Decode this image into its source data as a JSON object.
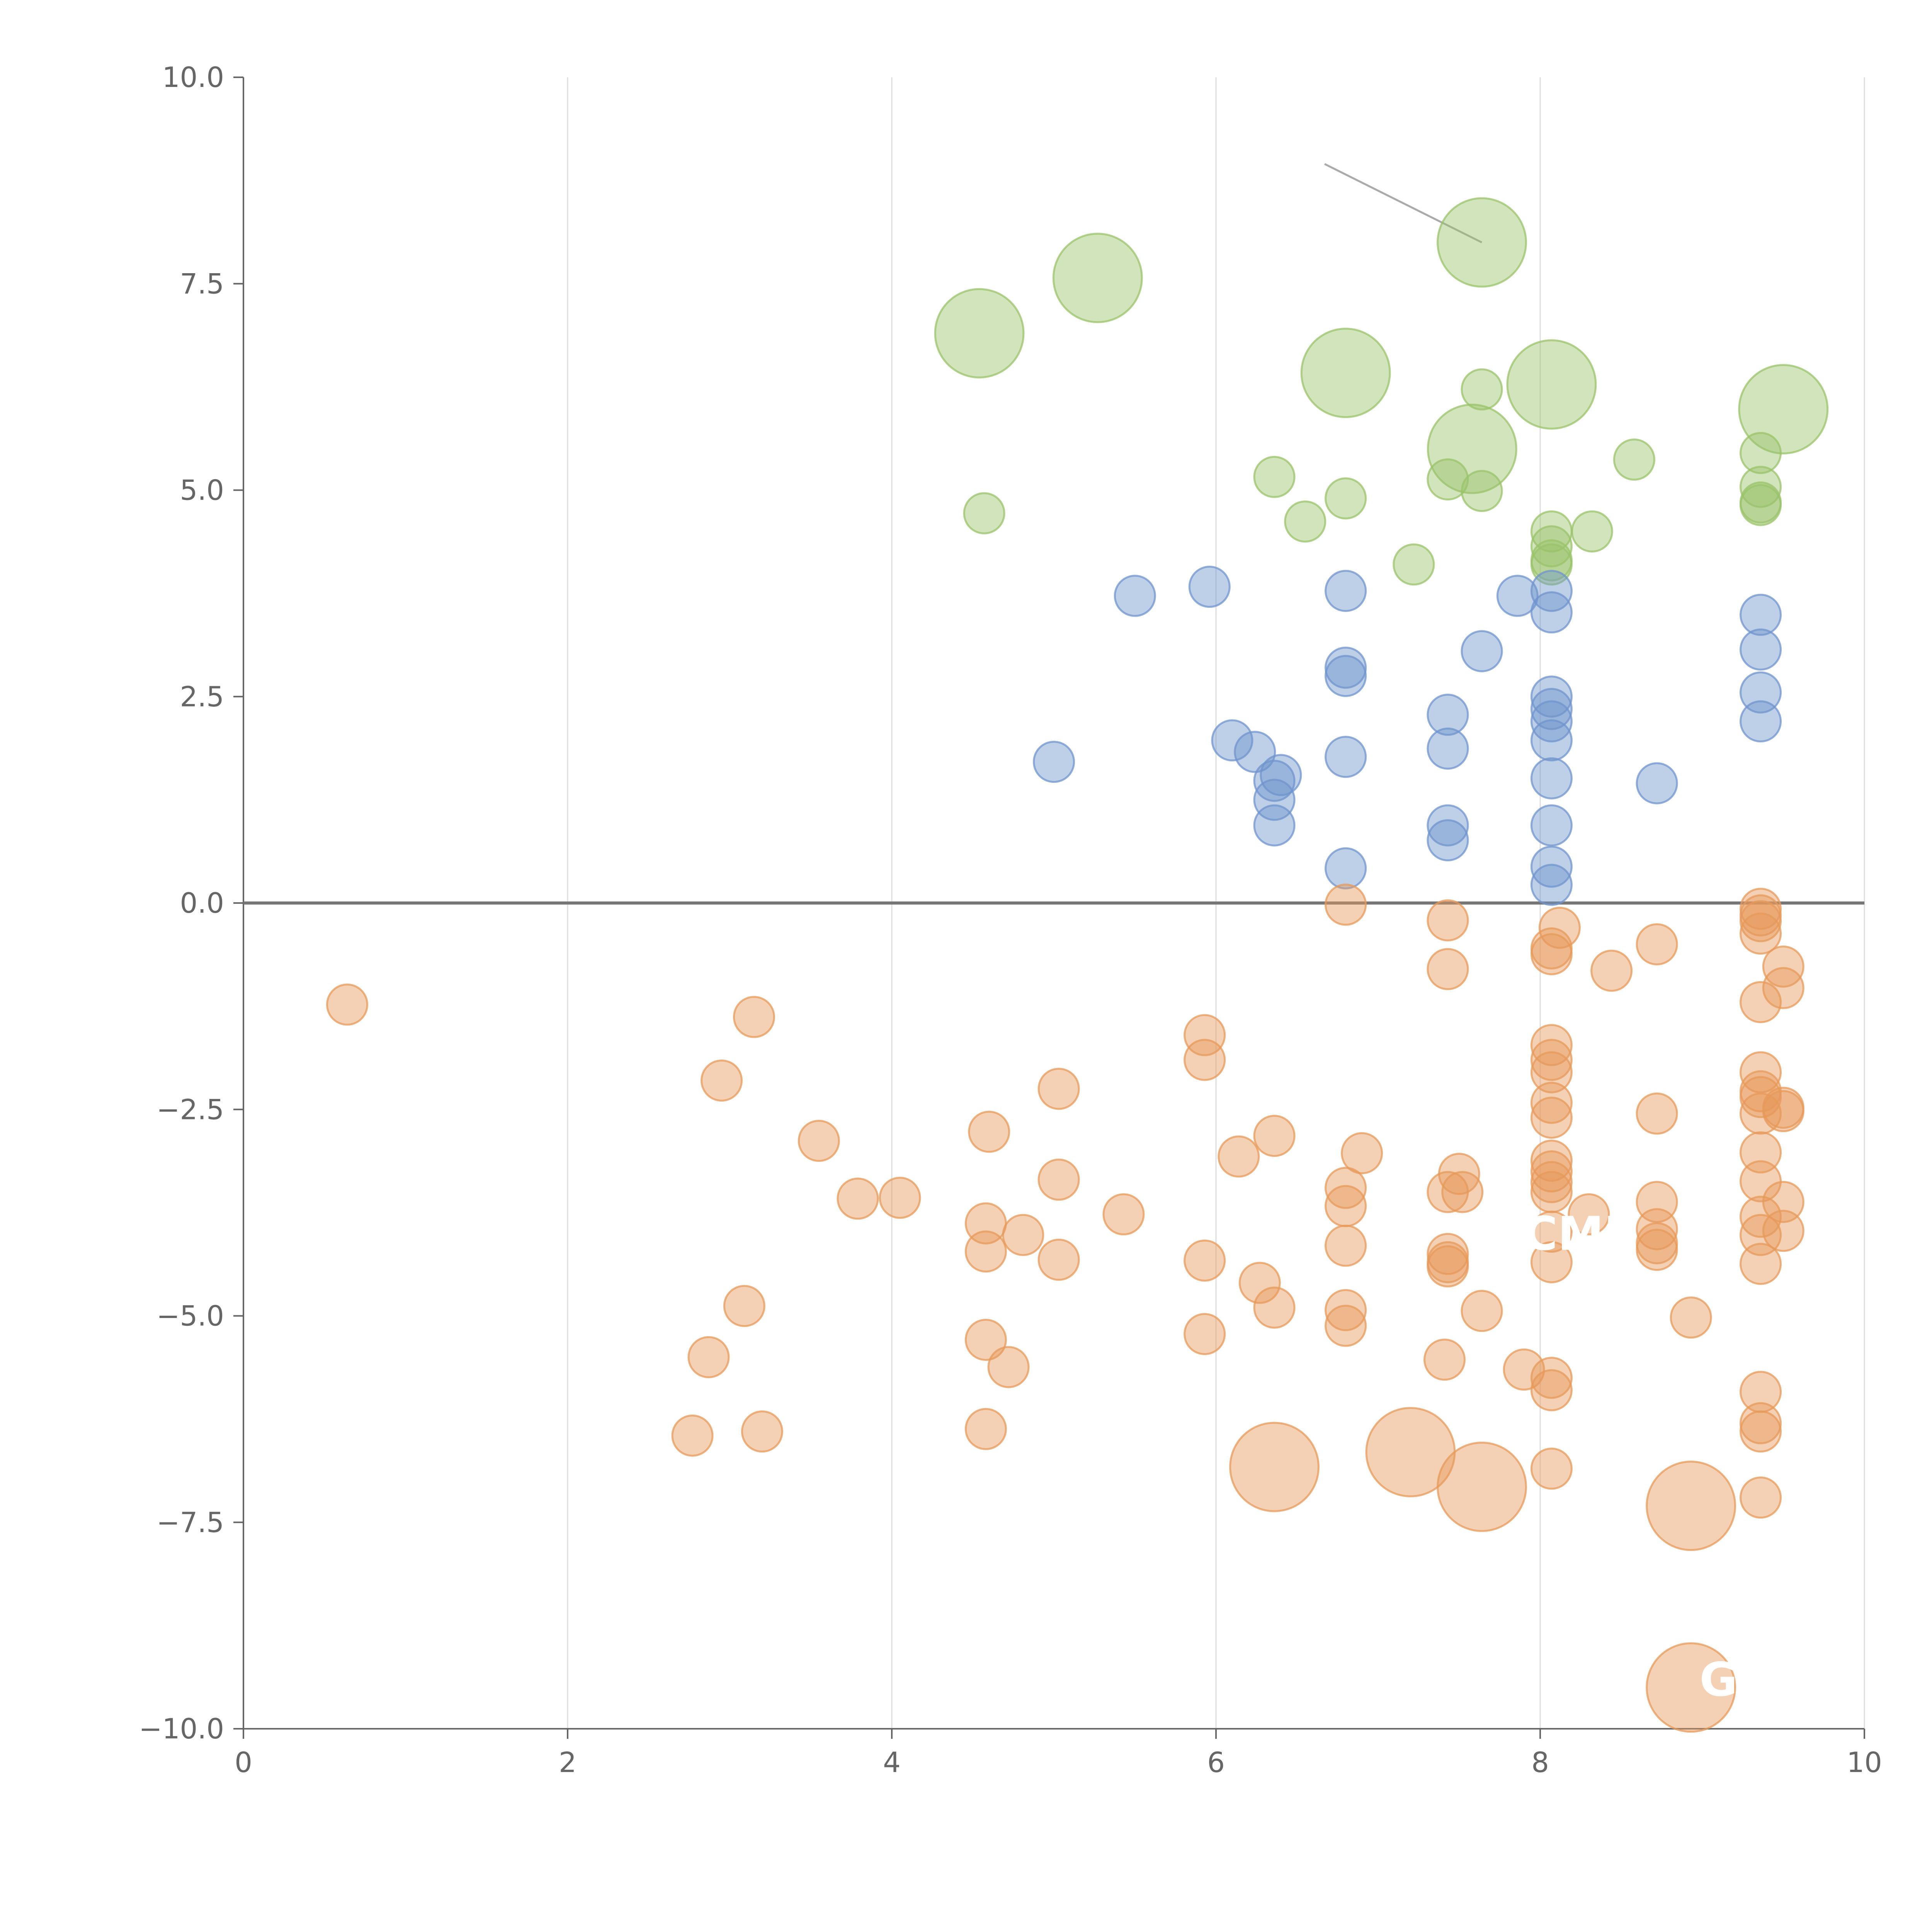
{
  "chart_data": {
    "type": "scatter",
    "title": "",
    "xlabel": "",
    "ylabel": "",
    "xlim": [
      0,
      10
    ],
    "ylim": [
      -10,
      10
    ],
    "x_ticks": [
      "0",
      "2",
      "4",
      "6",
      "8",
      "10"
    ],
    "y_ticks": [
      "10.0",
      "7.5",
      "5.0",
      "2.5",
      "0.0",
      "−2.5",
      "−5.0",
      "−7.5",
      "−10.0"
    ],
    "x_tick_values": [
      0,
      2,
      4,
      6,
      8,
      10
    ],
    "y_tick_values": [
      10,
      7.5,
      5,
      2.5,
      0,
      -2.5,
      -5,
      -7.5,
      -10
    ],
    "vertical_grid": true,
    "horizontal_grid": false,
    "zero_line": true,
    "legend": "none",
    "annotations": [
      {
        "text": "CMP",
        "x": 8.25,
        "y": -4.2,
        "line_to": [
          8.25,
          -4.2
        ]
      },
      {
        "text": "G",
        "x": 9.1,
        "y": -9.6,
        "line_to": [
          8.93,
          -9.5
        ]
      }
    ],
    "leader_lines": [
      {
        "x1": 6.67,
        "y1": 8.95,
        "x2": 7.64,
        "y2": 8.0
      },
      {
        "x1": 4.55,
        "y1": 7.35,
        "x2": 4.53,
        "y2": 6.95
      },
      {
        "x1": 8.25,
        "y1": 6.6,
        "x2": 8.1,
        "y2": 6.35
      },
      {
        "x1": 9.45,
        "y1": 6.0,
        "x2": 9.3,
        "y2": 5.95
      },
      {
        "x1": 6.85,
        "y1": 6.4,
        "x2": 7.0,
        "y2": 6.2
      },
      {
        "x1": 7.6,
        "y1": 5.45,
        "x2": 7.5,
        "y2": 5.0
      },
      {
        "x1": 7.22,
        "y1": 4.15,
        "x2": 7.15,
        "y2": 3.95
      },
      {
        "x1": 7.64,
        "y1": -4.98,
        "x2": 7.55,
        "y2": -5.2
      },
      {
        "x1": 7.2,
        "y1": -6.65,
        "x2": 7.1,
        "y2": -6.9
      },
      {
        "x1": 9.3,
        "y1": -5.8,
        "x2": 9.2,
        "y2": -6.0
      },
      {
        "x1": 8.96,
        "y1": -7.25,
        "x2": 8.88,
        "y2": -7.45
      }
    ],
    "series": [
      {
        "color": "#9ac36a",
        "points": [
          [
            7.64,
            8.0,
            2.2
          ],
          [
            5.27,
            7.57,
            2.2
          ],
          [
            4.54,
            6.9,
            2.2
          ],
          [
            6.8,
            6.42,
            2.2
          ],
          [
            8.07,
            6.28,
            2.2
          ],
          [
            9.5,
            5.98,
            2.2
          ],
          [
            7.58,
            5.5,
            2.2
          ],
          [
            7.64,
            6.22,
            1.0
          ],
          [
            9.36,
            5.45,
            1.0
          ],
          [
            8.58,
            5.37,
            1.0
          ],
          [
            6.36,
            5.16,
            1.0
          ],
          [
            7.43,
            5.13,
            1.0
          ],
          [
            7.64,
            4.99,
            1.0
          ],
          [
            9.36,
            5.04,
            1.0
          ],
          [
            6.8,
            4.9,
            1.0
          ],
          [
            9.36,
            4.85,
            1.0
          ],
          [
            9.36,
            4.82,
            1.0
          ],
          [
            4.57,
            4.72,
            1.0
          ],
          [
            6.55,
            4.62,
            1.0
          ],
          [
            8.07,
            4.5,
            1.0
          ],
          [
            8.32,
            4.5,
            1.0
          ],
          [
            8.07,
            4.32,
            1.0
          ],
          [
            8.07,
            4.15,
            1.0
          ],
          [
            8.07,
            4.1,
            1.0
          ],
          [
            7.22,
            4.1,
            1.0
          ]
        ]
      },
      {
        "color": "#6f94cd",
        "points": [
          [
            5.96,
            3.83,
            1.0
          ],
          [
            5.5,
            3.72,
            1.0
          ],
          [
            6.8,
            3.78,
            1.0
          ],
          [
            7.86,
            3.72,
            1.0
          ],
          [
            8.07,
            3.78,
            1.0
          ],
          [
            8.07,
            3.52,
            1.0
          ],
          [
            9.36,
            3.49,
            1.0
          ],
          [
            9.36,
            3.07,
            1.0
          ],
          [
            7.64,
            3.05,
            1.0
          ],
          [
            6.8,
            2.85,
            1.0
          ],
          [
            6.8,
            2.75,
            1.0
          ],
          [
            8.07,
            2.5,
            1.0
          ],
          [
            9.36,
            2.55,
            1.0
          ],
          [
            8.07,
            2.35,
            1.0
          ],
          [
            7.43,
            2.28,
            1.0
          ],
          [
            8.07,
            2.2,
            1.0
          ],
          [
            9.36,
            2.2,
            1.0
          ],
          [
            6.1,
            1.97,
            1.0
          ],
          [
            8.07,
            1.97,
            1.0
          ],
          [
            6.24,
            1.83,
            1.0
          ],
          [
            7.43,
            1.87,
            1.0
          ],
          [
            6.8,
            1.77,
            1.0
          ],
          [
            5.0,
            1.71,
            1.0
          ],
          [
            6.4,
            1.55,
            1.0
          ],
          [
            6.36,
            1.48,
            1.0
          ],
          [
            8.07,
            1.51,
            1.0
          ],
          [
            8.72,
            1.45,
            1.0
          ],
          [
            6.36,
            1.25,
            1.0
          ],
          [
            6.36,
            0.94,
            1.0
          ],
          [
            7.43,
            0.94,
            1.0
          ],
          [
            8.07,
            0.94,
            1.0
          ],
          [
            7.43,
            0.76,
            1.0
          ],
          [
            6.8,
            0.42,
            1.0
          ],
          [
            8.07,
            0.44,
            1.0
          ],
          [
            8.07,
            0.22,
            1.0
          ]
        ]
      },
      {
        "color": "#e79a5a",
        "points": [
          [
            6.8,
            -0.02,
            1.0
          ],
          [
            9.36,
            -0.07,
            1.0
          ],
          [
            9.36,
            -0.15,
            1.0
          ],
          [
            7.43,
            -0.21,
            1.0
          ],
          [
            9.36,
            -0.22,
            1.0
          ],
          [
            8.12,
            -0.3,
            1.0
          ],
          [
            9.36,
            -0.37,
            1.0
          ],
          [
            8.72,
            -0.5,
            1.0
          ],
          [
            8.07,
            -0.55,
            1.0
          ],
          [
            8.07,
            -0.62,
            1.0
          ],
          [
            9.5,
            -0.77,
            1.0
          ],
          [
            7.43,
            -0.8,
            1.0
          ],
          [
            8.44,
            -0.82,
            1.0
          ],
          [
            9.5,
            -1.03,
            1.0
          ],
          [
            0.64,
            -1.23,
            1.0
          ],
          [
            9.36,
            -1.2,
            1.0
          ],
          [
            3.15,
            -1.38,
            1.0
          ],
          [
            5.93,
            -1.6,
            1.0
          ],
          [
            8.07,
            -1.72,
            1.0
          ],
          [
            5.93,
            -1.9,
            1.0
          ],
          [
            8.07,
            -1.9,
            1.0
          ],
          [
            8.07,
            -2.05,
            1.0
          ],
          [
            9.36,
            -2.05,
            1.0
          ],
          [
            2.95,
            -2.15,
            1.0
          ],
          [
            5.03,
            -2.25,
            1.0
          ],
          [
            9.36,
            -2.28,
            1.0
          ],
          [
            9.36,
            -2.35,
            1.0
          ],
          [
            8.07,
            -2.42,
            1.0
          ],
          [
            9.5,
            -2.48,
            1.0
          ],
          [
            9.5,
            -2.52,
            1.0
          ],
          [
            8.72,
            -2.55,
            1.0
          ],
          [
            9.36,
            -2.55,
            1.0
          ],
          [
            8.07,
            -2.6,
            1.0
          ],
          [
            4.6,
            -2.77,
            1.0
          ],
          [
            6.36,
            -2.82,
            1.0
          ],
          [
            3.55,
            -2.88,
            1.0
          ],
          [
            9.36,
            -3.02,
            1.0
          ],
          [
            6.9,
            -3.03,
            1.0
          ],
          [
            6.14,
            -3.07,
            1.0
          ],
          [
            8.07,
            -3.12,
            1.0
          ],
          [
            8.07,
            -3.25,
            1.0
          ],
          [
            7.5,
            -3.28,
            1.0
          ],
          [
            9.36,
            -3.37,
            1.0
          ],
          [
            5.03,
            -3.35,
            1.0
          ],
          [
            8.07,
            -3.38,
            1.0
          ],
          [
            6.8,
            -3.45,
            1.0
          ],
          [
            7.43,
            -3.5,
            1.0
          ],
          [
            7.52,
            -3.5,
            1.0
          ],
          [
            8.07,
            -3.5,
            1.0
          ],
          [
            3.79,
            -3.58,
            1.0
          ],
          [
            4.05,
            -3.57,
            1.0
          ],
          [
            8.72,
            -3.62,
            1.0
          ],
          [
            9.5,
            -3.62,
            1.0
          ],
          [
            6.8,
            -3.67,
            1.0
          ],
          [
            5.43,
            -3.77,
            1.0
          ],
          [
            8.3,
            -3.77,
            1.0
          ],
          [
            9.36,
            -3.8,
            1.0
          ],
          [
            4.58,
            -3.88,
            1.0
          ],
          [
            8.72,
            -3.95,
            1.0
          ],
          [
            8.07,
            -3.98,
            1.0
          ],
          [
            9.5,
            -3.97,
            1.0
          ],
          [
            9.36,
            -4.02,
            1.0
          ],
          [
            4.81,
            -4.02,
            1.0
          ],
          [
            8.72,
            -4.12,
            1.0
          ],
          [
            6.8,
            -4.15,
            1.0
          ],
          [
            8.72,
            -4.2,
            1.0
          ],
          [
            4.58,
            -4.22,
            1.0
          ],
          [
            7.43,
            -4.25,
            1.0
          ],
          [
            5.03,
            -4.32,
            1.0
          ],
          [
            5.93,
            -4.33,
            1.0
          ],
          [
            7.43,
            -4.35,
            1.0
          ],
          [
            8.07,
            -4.35,
            1.0
          ],
          [
            9.36,
            -4.37,
            1.0
          ],
          [
            7.43,
            -4.4,
            1.0
          ],
          [
            6.27,
            -4.6,
            1.0
          ],
          [
            3.09,
            -4.88,
            1.0
          ],
          [
            6.36,
            -4.9,
            1.0
          ],
          [
            6.8,
            -4.93,
            1.0
          ],
          [
            7.64,
            -4.94,
            1.0
          ],
          [
            8.93,
            -5.02,
            1.0
          ],
          [
            6.8,
            -5.12,
            1.0
          ],
          [
            5.93,
            -5.22,
            1.0
          ],
          [
            4.58,
            -5.29,
            1.0
          ],
          [
            2.87,
            -5.5,
            1.0
          ],
          [
            7.41,
            -5.53,
            1.0
          ],
          [
            4.72,
            -5.62,
            1.0
          ],
          [
            7.9,
            -5.65,
            1.0
          ],
          [
            8.07,
            -5.75,
            1.0
          ],
          [
            8.07,
            -5.9,
            1.0
          ],
          [
            9.36,
            -5.92,
            1.0
          ],
          [
            9.36,
            -6.3,
            1.0
          ],
          [
            9.36,
            -6.4,
            1.0
          ],
          [
            4.58,
            -6.37,
            1.0
          ],
          [
            3.2,
            -6.4,
            1.0
          ],
          [
            2.77,
            -6.45,
            1.0
          ],
          [
            7.2,
            -6.65,
            2.2
          ],
          [
            6.36,
            -6.83,
            2.2
          ],
          [
            8.07,
            -6.85,
            1.0
          ],
          [
            7.64,
            -7.07,
            2.2
          ],
          [
            9.36,
            -7.2,
            1.0
          ],
          [
            8.93,
            -7.3,
            2.2
          ],
          [
            8.93,
            -9.5,
            2.2
          ]
        ]
      }
    ]
  }
}
